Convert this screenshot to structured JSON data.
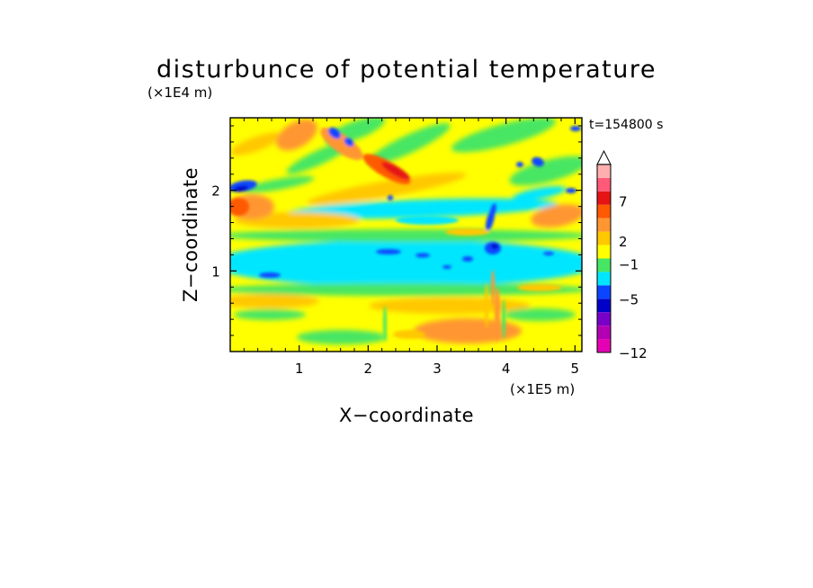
{
  "chart_data": {
    "type": "heatmap",
    "title": "disturbunce of potential temperature",
    "time_label": "t=154800 s",
    "xlabel": "X−coordinate",
    "ylabel": "Z−coordinate",
    "x_unit": "(×1E5 m)",
    "y_unit": "(×1E4 m)",
    "xlim": [
      0,
      5.1
    ],
    "ylim": [
      0,
      2.9
    ],
    "x_ticks": [
      {
        "value": 1,
        "label": "1"
      },
      {
        "value": 2,
        "label": "2"
      },
      {
        "value": 3,
        "label": "3"
      },
      {
        "value": 4,
        "label": "4"
      },
      {
        "value": 5,
        "label": "5"
      }
    ],
    "y_ticks": [
      {
        "value": 1,
        "label": "1"
      },
      {
        "value": 2,
        "label": "2"
      }
    ],
    "colorbar": {
      "bands": [
        {
          "color": "#e600b4"
        },
        {
          "color": "#b400b4"
        },
        {
          "color": "#7800c8"
        },
        {
          "color": "#0000c8"
        },
        {
          "color": "#0a46ff"
        },
        {
          "color": "#00e6ff"
        },
        {
          "color": "#46e664"
        },
        {
          "color": "#ffff00"
        },
        {
          "color": "#ffc800"
        },
        {
          "color": "#ff9632"
        },
        {
          "color": "#ff5a00"
        },
        {
          "color": "#e61414"
        },
        {
          "color": "#ff5a78"
        },
        {
          "color": "#ffafaf"
        },
        {
          "color": "#ffffff"
        }
      ],
      "labels": [
        {
          "label": "−12",
          "at": 0
        },
        {
          "label": "−5",
          "at": 4
        },
        {
          "label": "−1",
          "at": 6.6
        },
        {
          "label": "2",
          "at": 8.3
        },
        {
          "label": "7",
          "at": 11.3
        }
      ]
    }
  }
}
